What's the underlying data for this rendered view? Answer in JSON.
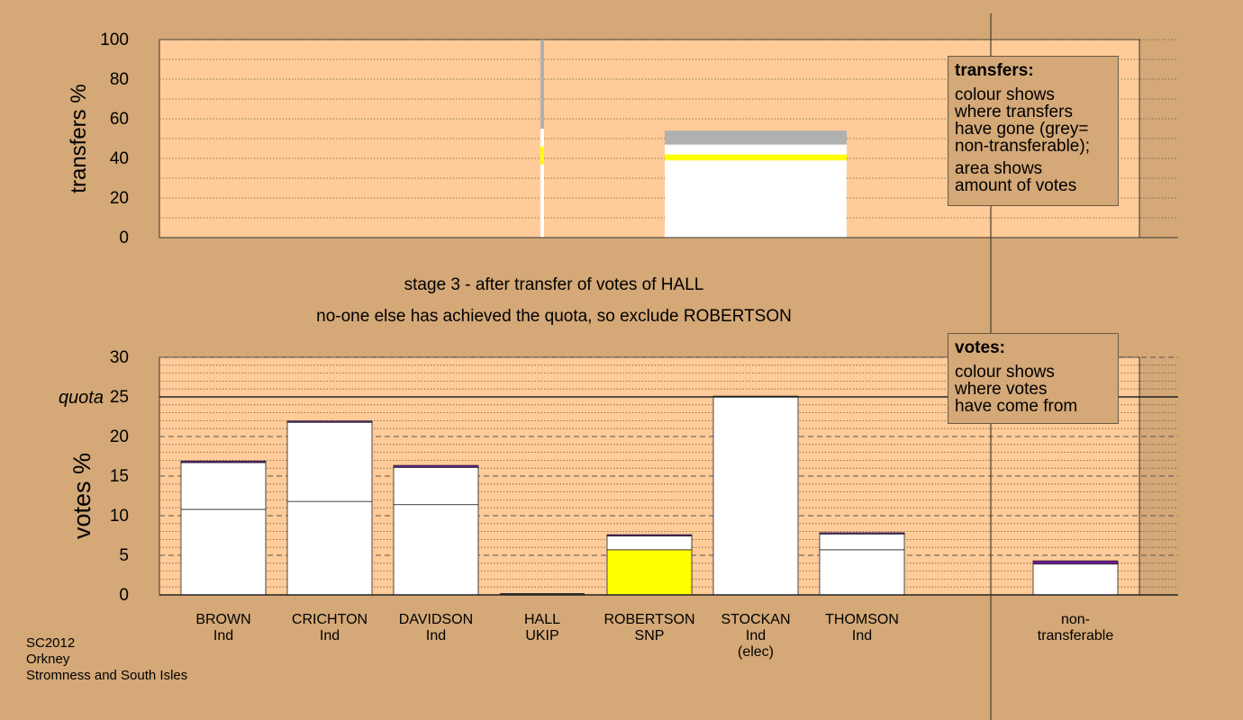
{
  "stage_title": "stage 3 - after transfer of votes of HALL",
  "stage_note": "no-one else has achieved the quota, so exclude ROBERTSON",
  "legend_transfers": {
    "title": "transfers:",
    "p1": [
      "colour shows",
      "where transfers",
      "have gone (grey=",
      "non-transferable);"
    ],
    "p2": [
      "area shows",
      "amount of votes"
    ]
  },
  "legend_votes": {
    "title": "votes:",
    "p1": [
      "colour shows",
      "where votes",
      "have come from"
    ]
  },
  "footer": [
    "SC2012",
    "Orkney",
    "Stromness and South Isles"
  ],
  "colors": {
    "background": "#d4a877",
    "plot_area": "#ffcc99",
    "white": "#ffffff",
    "snp_yellow": "#ffff00",
    "ukip_purple": "#70199b",
    "nontransferable_grey": "#b0b0b0"
  },
  "chart_data": [
    {
      "type": "bar",
      "ylabel": "transfers %",
      "ylim": [
        0,
        100
      ],
      "yticks": [
        0,
        20,
        40,
        60,
        80,
        100
      ],
      "grid": "dotted",
      "candidates": [
        "BROWN",
        "CRICHTON",
        "DAVIDSON",
        "HALL",
        "ROBERTSON",
        "STOCKAN",
        "THOMSON"
      ],
      "transfers": [
        {
          "from": "HALL",
          "segments": [
            {
              "color": "white",
              "value": 37
            },
            {
              "color": "yellow",
              "value": 9
            },
            {
              "color": "white",
              "value": 9
            },
            {
              "color": "grey",
              "value": 45
            }
          ]
        },
        {
          "from": "ROBERTSON",
          "segments": [
            {
              "color": "white",
              "value": 39
            },
            {
              "color": "yellow",
              "value": 3
            },
            {
              "color": "white",
              "value": 5
            },
            {
              "color": "grey",
              "value": 7
            }
          ]
        }
      ]
    },
    {
      "type": "bar",
      "ylabel": "votes %",
      "ylim": [
        0,
        30
      ],
      "yticks": [
        0,
        5,
        10,
        15,
        20,
        25,
        30
      ],
      "quota": 25,
      "quota_label": "quota",
      "categories": [
        {
          "name": "BROWN",
          "party": "Ind"
        },
        {
          "name": "CRICHTON",
          "party": "Ind"
        },
        {
          "name": "DAVIDSON",
          "party": "Ind"
        },
        {
          "name": "HALL",
          "party": "UKIP"
        },
        {
          "name": "ROBERTSON",
          "party": "SNP"
        },
        {
          "name": "STOCKAN",
          "party": "Ind",
          "note": "(elec)"
        },
        {
          "name": "THOMSON",
          "party": "Ind"
        },
        {
          "name": "non-",
          "party": "transferable"
        }
      ],
      "stacks": [
        {
          "candidate": "BROWN",
          "segments": [
            {
              "color": "white",
              "value": 10.8
            },
            {
              "color": "white",
              "value": 5.9
            },
            {
              "color": "purple",
              "value": 0.2
            }
          ]
        },
        {
          "candidate": "CRICHTON",
          "segments": [
            {
              "color": "white",
              "value": 11.8
            },
            {
              "color": "white",
              "value": 10.1
            },
            {
              "color": "purple",
              "value": 0.05
            }
          ]
        },
        {
          "candidate": "DAVIDSON",
          "segments": [
            {
              "color": "white",
              "value": 11.4
            },
            {
              "color": "white",
              "value": 4.7
            },
            {
              "color": "purple",
              "value": 0.25
            }
          ]
        },
        {
          "candidate": "HALL",
          "segments": []
        },
        {
          "candidate": "ROBERTSON",
          "segments": [
            {
              "color": "yellow",
              "value": 5.7
            },
            {
              "color": "white",
              "value": 1.8
            },
            {
              "color": "purple",
              "value": 0.1
            }
          ]
        },
        {
          "candidate": "STOCKAN",
          "segments": [
            {
              "color": "white",
              "value": 25.1
            }
          ]
        },
        {
          "candidate": "THOMSON",
          "segments": [
            {
              "color": "white",
              "value": 5.7
            },
            {
              "color": "white",
              "value": 2.1
            },
            {
              "color": "purple",
              "value": 0.05
            }
          ]
        },
        {
          "candidate": "non-transferable",
          "segments": [
            {
              "color": "white",
              "value": 3.9
            },
            {
              "color": "purple",
              "value": 0.4
            }
          ]
        }
      ]
    }
  ]
}
